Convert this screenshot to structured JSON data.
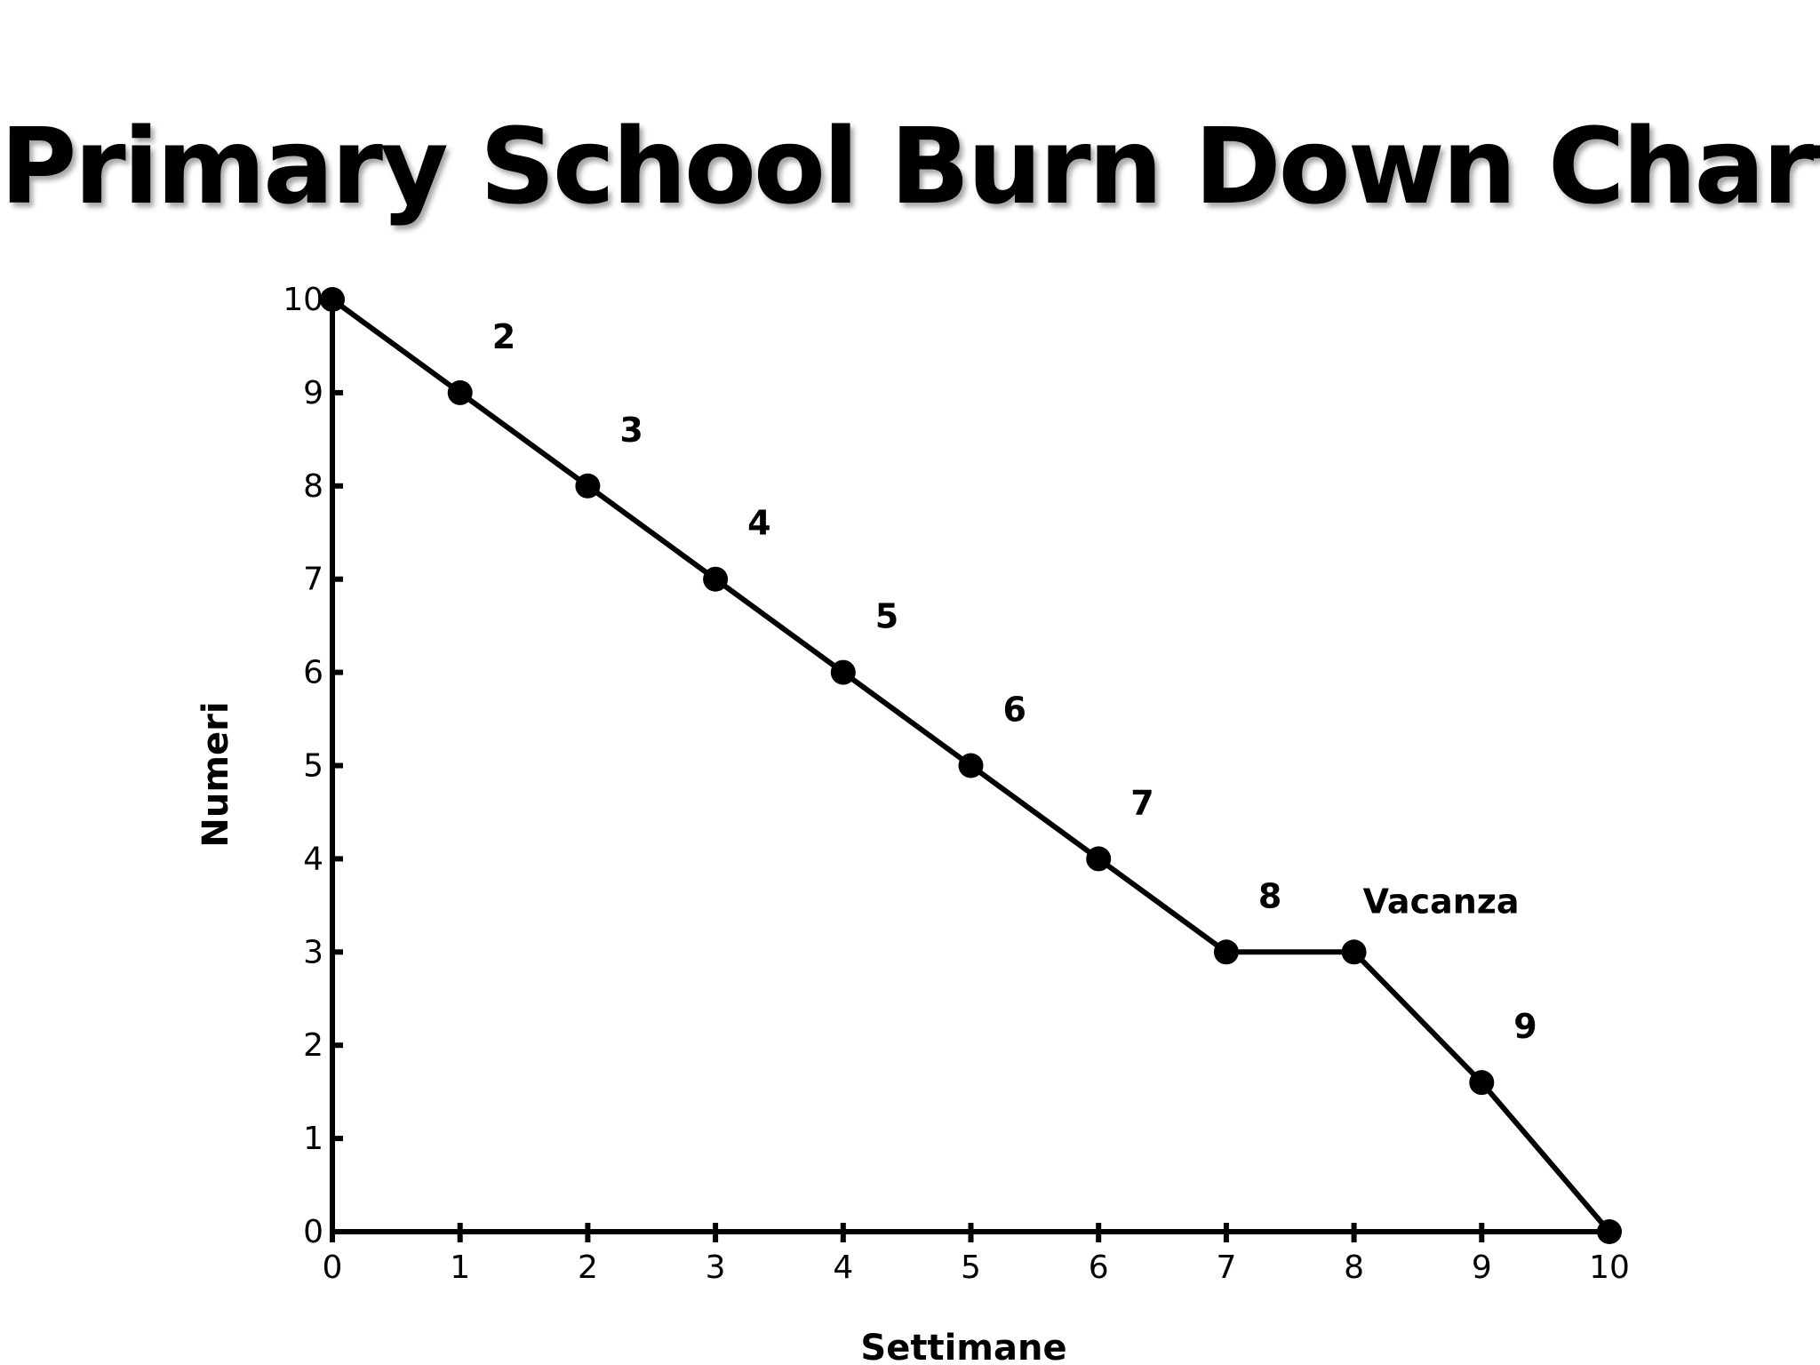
{
  "chart_data": {
    "type": "line",
    "title": "Primary School Burn Down Chart",
    "xlabel": "Settimane",
    "ylabel": "Numeri",
    "xlim": [
      0,
      10
    ],
    "ylim": [
      0,
      10
    ],
    "xticks": [
      "0",
      "1",
      "2",
      "3",
      "4",
      "5",
      "6",
      "7",
      "8",
      "9",
      "10"
    ],
    "yticks": [
      "0",
      "1",
      "2",
      "3",
      "4",
      "5",
      "6",
      "7",
      "8",
      "9",
      "10"
    ],
    "grid": false,
    "legend": "none",
    "series": [
      {
        "x": [
          0,
          1,
          2,
          3,
          4,
          5,
          6,
          7,
          8,
          9,
          10
        ],
        "y": [
          10,
          9,
          8,
          7,
          6,
          5,
          4,
          3,
          3,
          1.6,
          0
        ]
      }
    ],
    "annotations": [
      {
        "text": "2",
        "x": 1,
        "y": 9
      },
      {
        "text": "3",
        "x": 2,
        "y": 8
      },
      {
        "text": "4",
        "x": 3,
        "y": 7
      },
      {
        "text": "5",
        "x": 4,
        "y": 6
      },
      {
        "text": "6",
        "x": 5,
        "y": 5
      },
      {
        "text": "7",
        "x": 6,
        "y": 4
      },
      {
        "text": "8",
        "x": 7,
        "y": 3
      },
      {
        "text": "Vacanza",
        "x": 8,
        "y": 3
      },
      {
        "text": "9",
        "x": 9,
        "y": 1.6
      }
    ],
    "colors": {
      "line": "#000000",
      "marker": "#000000",
      "axis": "#000000"
    }
  }
}
